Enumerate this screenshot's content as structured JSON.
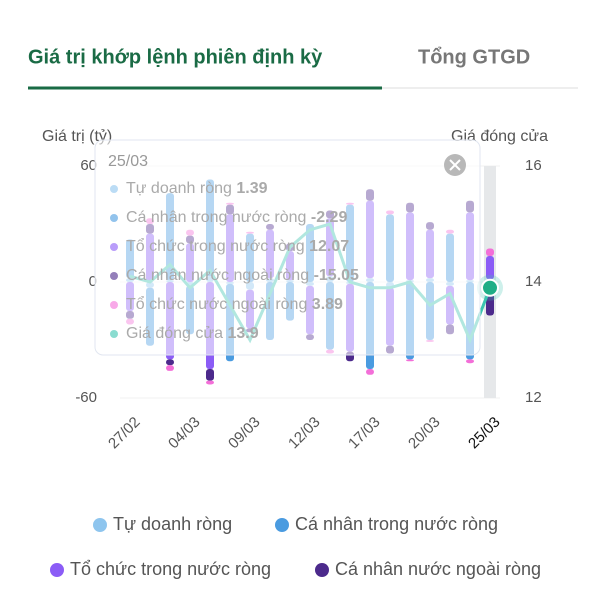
{
  "tabs": [
    "Giá trị khớp lệnh phiên định kỳ",
    "Tổng GTGD"
  ],
  "chart_data": {
    "type": "stacked-bar-line",
    "y_label": "Giá trị (tỷ)",
    "y2_label": "Giá đóng cửa",
    "categories": [
      "27/02",
      null,
      null,
      "04/03",
      null,
      null,
      "09/03",
      null,
      null,
      "12/03",
      null,
      null,
      "17/03",
      null,
      null,
      "20/03",
      null,
      null,
      "25/03"
    ],
    "series": [
      {
        "name": "Tự doanh ròng",
        "color": "#8ec5ee",
        "values": [
          2,
          -3,
          1,
          -2,
          3,
          -1,
          -4,
          2,
          1,
          -2,
          3,
          -1,
          2,
          -3,
          1,
          2,
          -2,
          1,
          1.39
        ]
      },
      {
        "name": "Cá nhân trong nước ròng",
        "color": "#4a9be0",
        "values": [
          20,
          -30,
          45,
          -25,
          50,
          -40,
          25,
          -30,
          -20,
          30,
          -35,
          40,
          -45,
          35,
          -40,
          -30,
          25,
          -40,
          -2.29
        ]
      },
      {
        "name": "Tổ chức trong nước ròng",
        "color": "#8b5cf6",
        "values": [
          -15,
          25,
          -40,
          20,
          -45,
          35,
          -20,
          25,
          15,
          -25,
          30,
          -35,
          40,
          -30,
          35,
          25,
          -20,
          35,
          12.07
        ]
      },
      {
        "name": "Cá nhân nước ngoài ròng",
        "color": "#4c2a8c",
        "values": [
          -4,
          5,
          -3,
          4,
          -6,
          5,
          -2,
          3,
          4,
          -3,
          4,
          -5,
          6,
          -4,
          5,
          4,
          -5,
          6,
          -15.05
        ]
      },
      {
        "name": "Tổ chức nước ngoài ròng",
        "color": "#f36fd8",
        "values": [
          -3,
          3,
          -3,
          3,
          -2,
          1,
          1,
          0,
          0,
          0,
          -2,
          1,
          -3,
          2,
          -1,
          -1,
          2,
          -2,
          3.89
        ]
      },
      {
        "name": "Giá đóng cửa",
        "color": "#3cc4b0",
        "axis": "y2",
        "values": [
          14.1,
          14.0,
          14.3,
          13.9,
          14.2,
          13.6,
          13.0,
          13.8,
          14.6,
          14.9,
          15.0,
          14.0,
          13.9,
          13.9,
          14.0,
          13.6,
          13.8,
          13.0,
          13.9
        ]
      }
    ],
    "ylim": [
      -60,
      60
    ],
    "yticks": [
      -60,
      0,
      60
    ],
    "y2lim": [
      12,
      16
    ],
    "y2ticks": [
      12,
      14,
      16
    ]
  }
}
